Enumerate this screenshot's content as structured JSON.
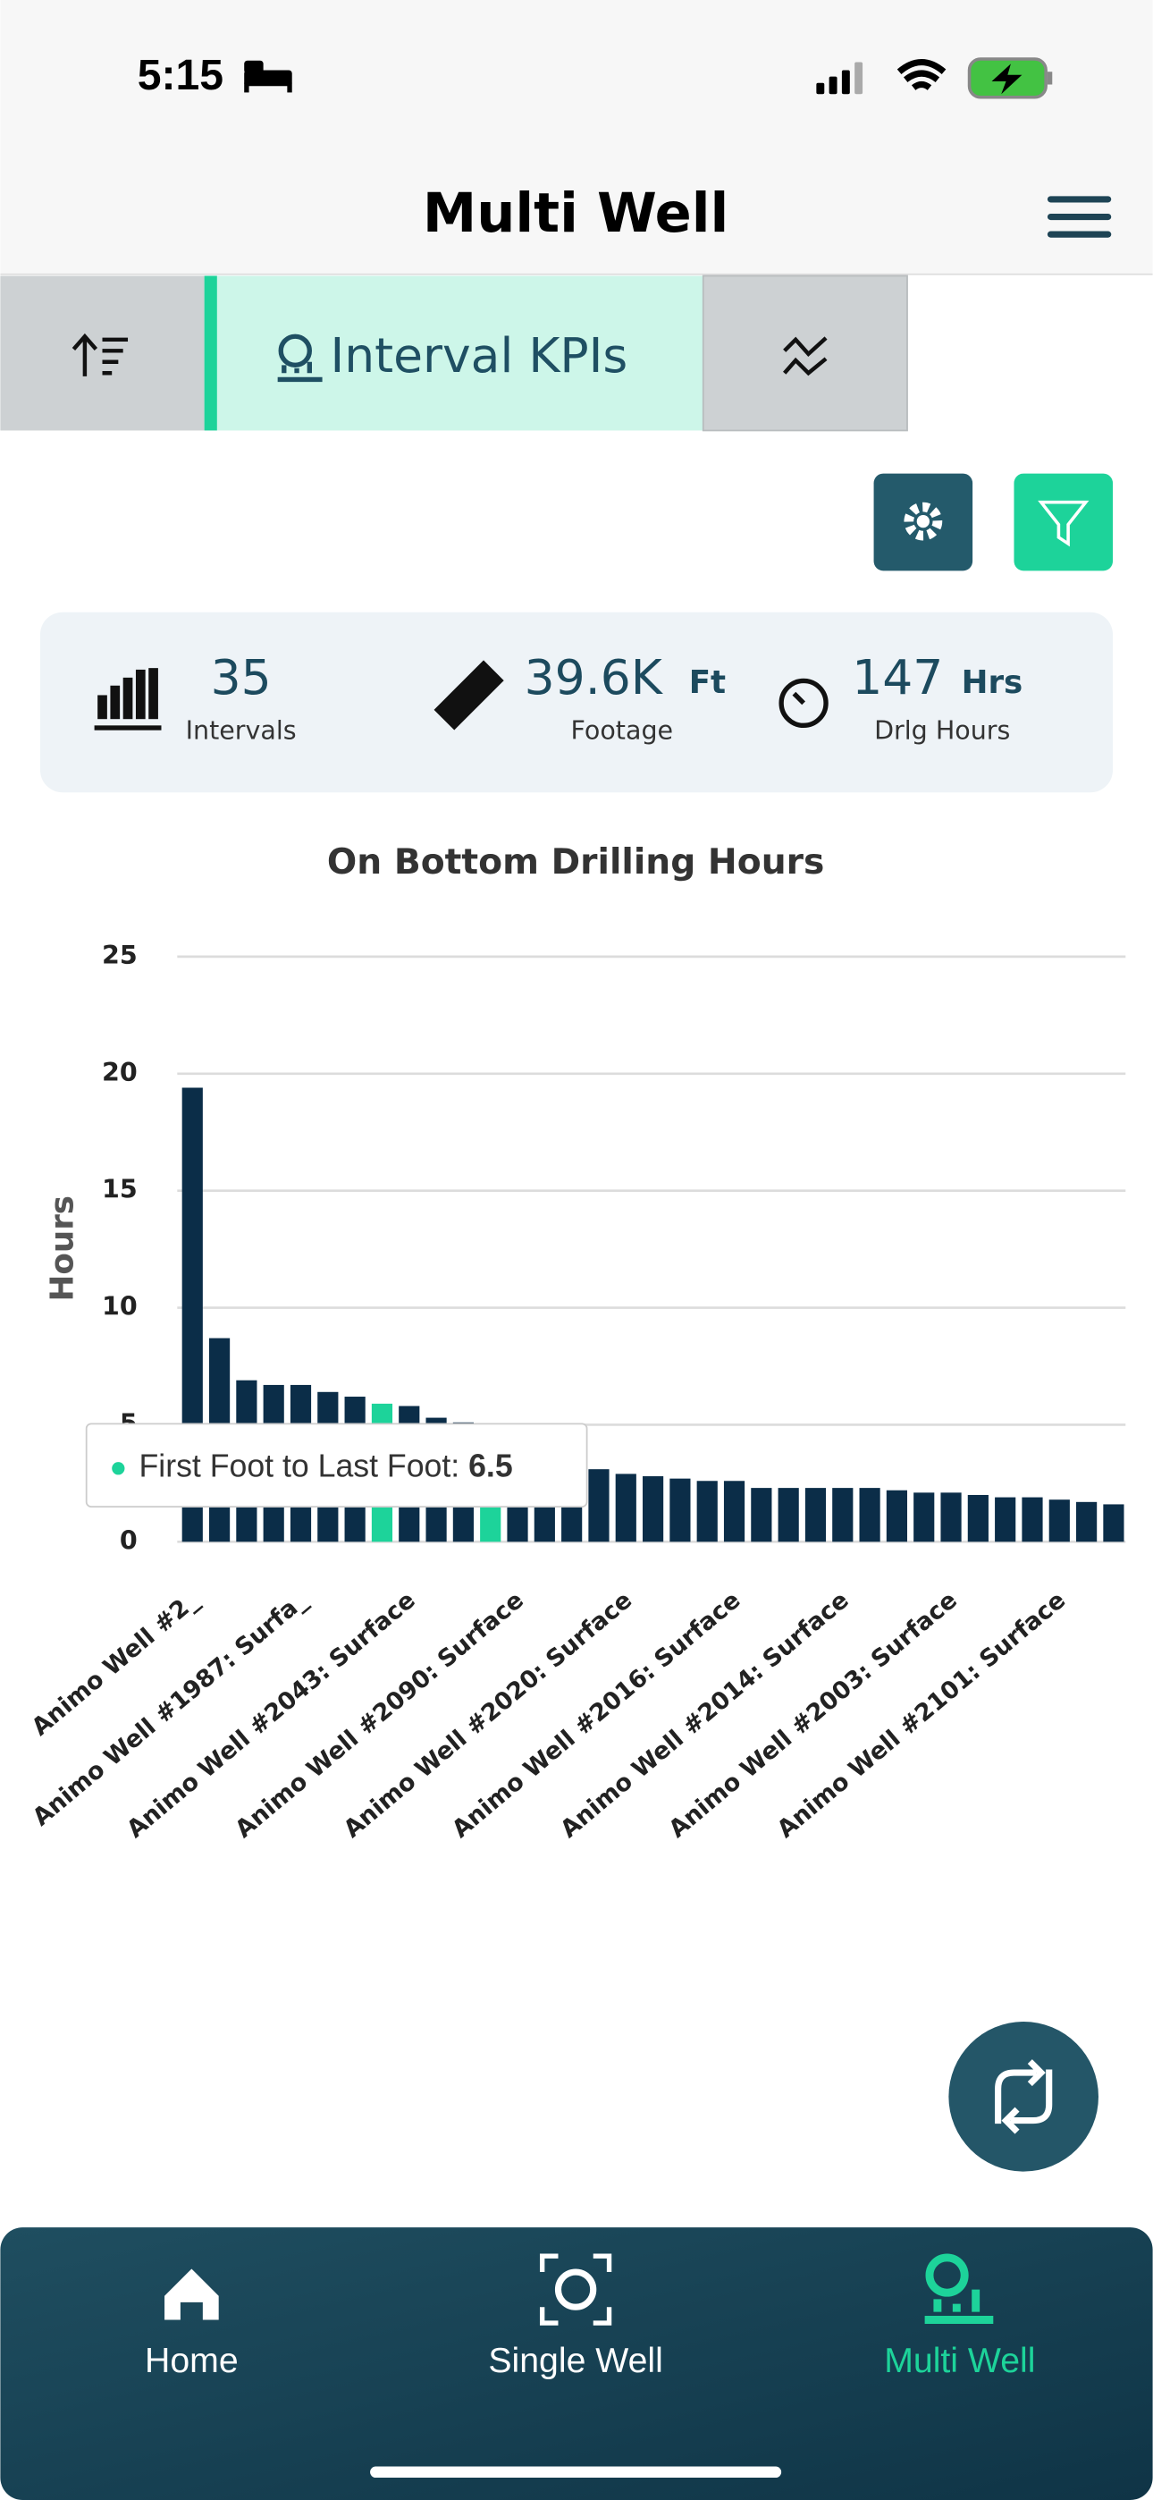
{
  "status_bar": {
    "time": "5:15"
  },
  "header": {
    "title": "Multi Well"
  },
  "tabs": {
    "active": "Interval KPIs"
  },
  "kpis": [
    {
      "value": "35",
      "label": "Intervals"
    },
    {
      "value": "39.6K",
      "unit": "Ft",
      "label": "Footage"
    },
    {
      "value": "147",
      "unit": "Hrs",
      "label": "Drlg Hours"
    }
  ],
  "chart_data": {
    "type": "bar",
    "title": "On Bottom Drilling Hours",
    "y_label": "Hours",
    "categories": [
      "Animo Well #2_",
      null,
      null,
      null,
      "Animo Well #1987: Surfa_",
      null,
      null,
      null,
      "Animo Well #2043: Surface",
      null,
      null,
      null,
      "Animo Well #2090: Surface",
      null,
      null,
      null,
      "Animo Well #2020: Surface",
      null,
      null,
      null,
      "Animo Well #2016: Surface",
      null,
      null,
      null,
      "Animo Well #2014: Surface",
      null,
      null,
      null,
      "Animo Well #2003: Surface",
      null,
      null,
      null,
      "Animo Well #2101: Surface",
      null,
      null
    ],
    "values": [
      19.4,
      8.7,
      6.9,
      6.7,
      6.7,
      6.4,
      6.2,
      5.9,
      5.8,
      5.3,
      5.1,
      4.5,
      4.0,
      3.5,
      3.2,
      3.1,
      2.9,
      2.8,
      2.7,
      2.6,
      2.6,
      2.3,
      2.3,
      2.3,
      2.3,
      2.3,
      2.2,
      2.1,
      2.1,
      2.0,
      1.9,
      1.9,
      1.8,
      1.7,
      1.6
    ],
    "colors": [
      "#0b2d48",
      "#0b2d48",
      "#0b2d48",
      "#0b2d48",
      "#0b2d48",
      "#0b2d48",
      "#0b2d48",
      "#1dd39a",
      "#0b2d48",
      "#0b2d48",
      "#0b2d48",
      "#1dd39a",
      "#0b2d48",
      "#0b2d48",
      "#0b2d48",
      "#0b2d48",
      "#0b2d48",
      "#0b2d48",
      "#0b2d48",
      "#0b2d48",
      "#0b2d48",
      "#0b2d48",
      "#0b2d48",
      "#0b2d48",
      "#0b2d48",
      "#0b2d48",
      "#0b2d48",
      "#0b2d48",
      "#0b2d48",
      "#0b2d48",
      "#0b2d48",
      "#0b2d48",
      "#0b2d48",
      "#0b2d48",
      "#0b2d48"
    ],
    "ylim": [
      0,
      25
    ],
    "yticks": [
      0,
      5,
      10,
      15,
      20,
      25
    ],
    "grid": true
  },
  "tooltip": {
    "label": "First Foot to Last Foot:",
    "value": 6.5
  },
  "nav": [
    {
      "label": "Home"
    },
    {
      "label": "Single Well"
    },
    {
      "label": "Multi Well"
    }
  ]
}
